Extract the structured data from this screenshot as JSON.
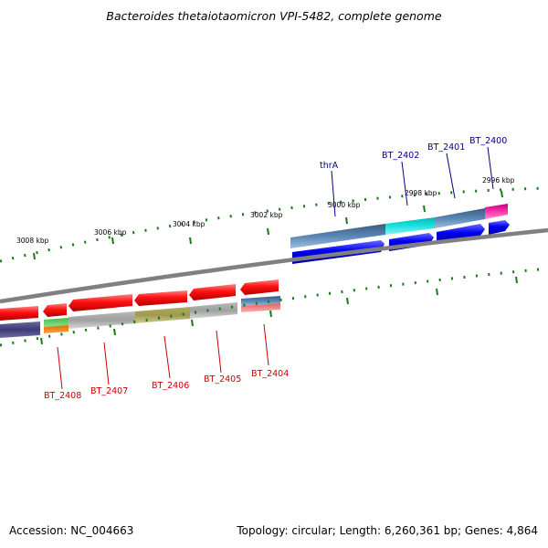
{
  "title": "Bacteroides thetaiotaomicron VPI-5482, complete genome",
  "footer": {
    "accession": "Accession: NC_004663",
    "summary": "Topology: circular; Length: 6,260,361 bp; Genes: 4,864"
  },
  "scale_labels": [
    "3008 kbp",
    "3006 kbp",
    "3004 kbp",
    "3002 kbp",
    "3000 kbp",
    "2998 kbp",
    "2996 kbp"
  ],
  "gene_labels_top": [
    {
      "name": "thrA",
      "color": "#00008b"
    },
    {
      "name": "BT_2402",
      "color": "#00008b"
    },
    {
      "name": "BT_2401",
      "color": "#00008b"
    },
    {
      "name": "BT_2400",
      "color": "#00008b"
    }
  ],
  "gene_labels_bottom": [
    {
      "name": "BT_2408",
      "color": "#cc0000"
    },
    {
      "name": "BT_2407",
      "color": "#cc0000"
    },
    {
      "name": "BT_2406",
      "color": "#cc0000"
    },
    {
      "name": "BT_2405",
      "color": "#cc0000"
    },
    {
      "name": "BT_2404",
      "color": "#cc0000"
    }
  ],
  "colors": {
    "backbone": "#808080",
    "ticks": "#1a7a1a",
    "forward_cds": "#0000ee",
    "reverse_cds": "#ee0000",
    "label_top": "#00008b",
    "label_bottom": "#cc0000"
  }
}
